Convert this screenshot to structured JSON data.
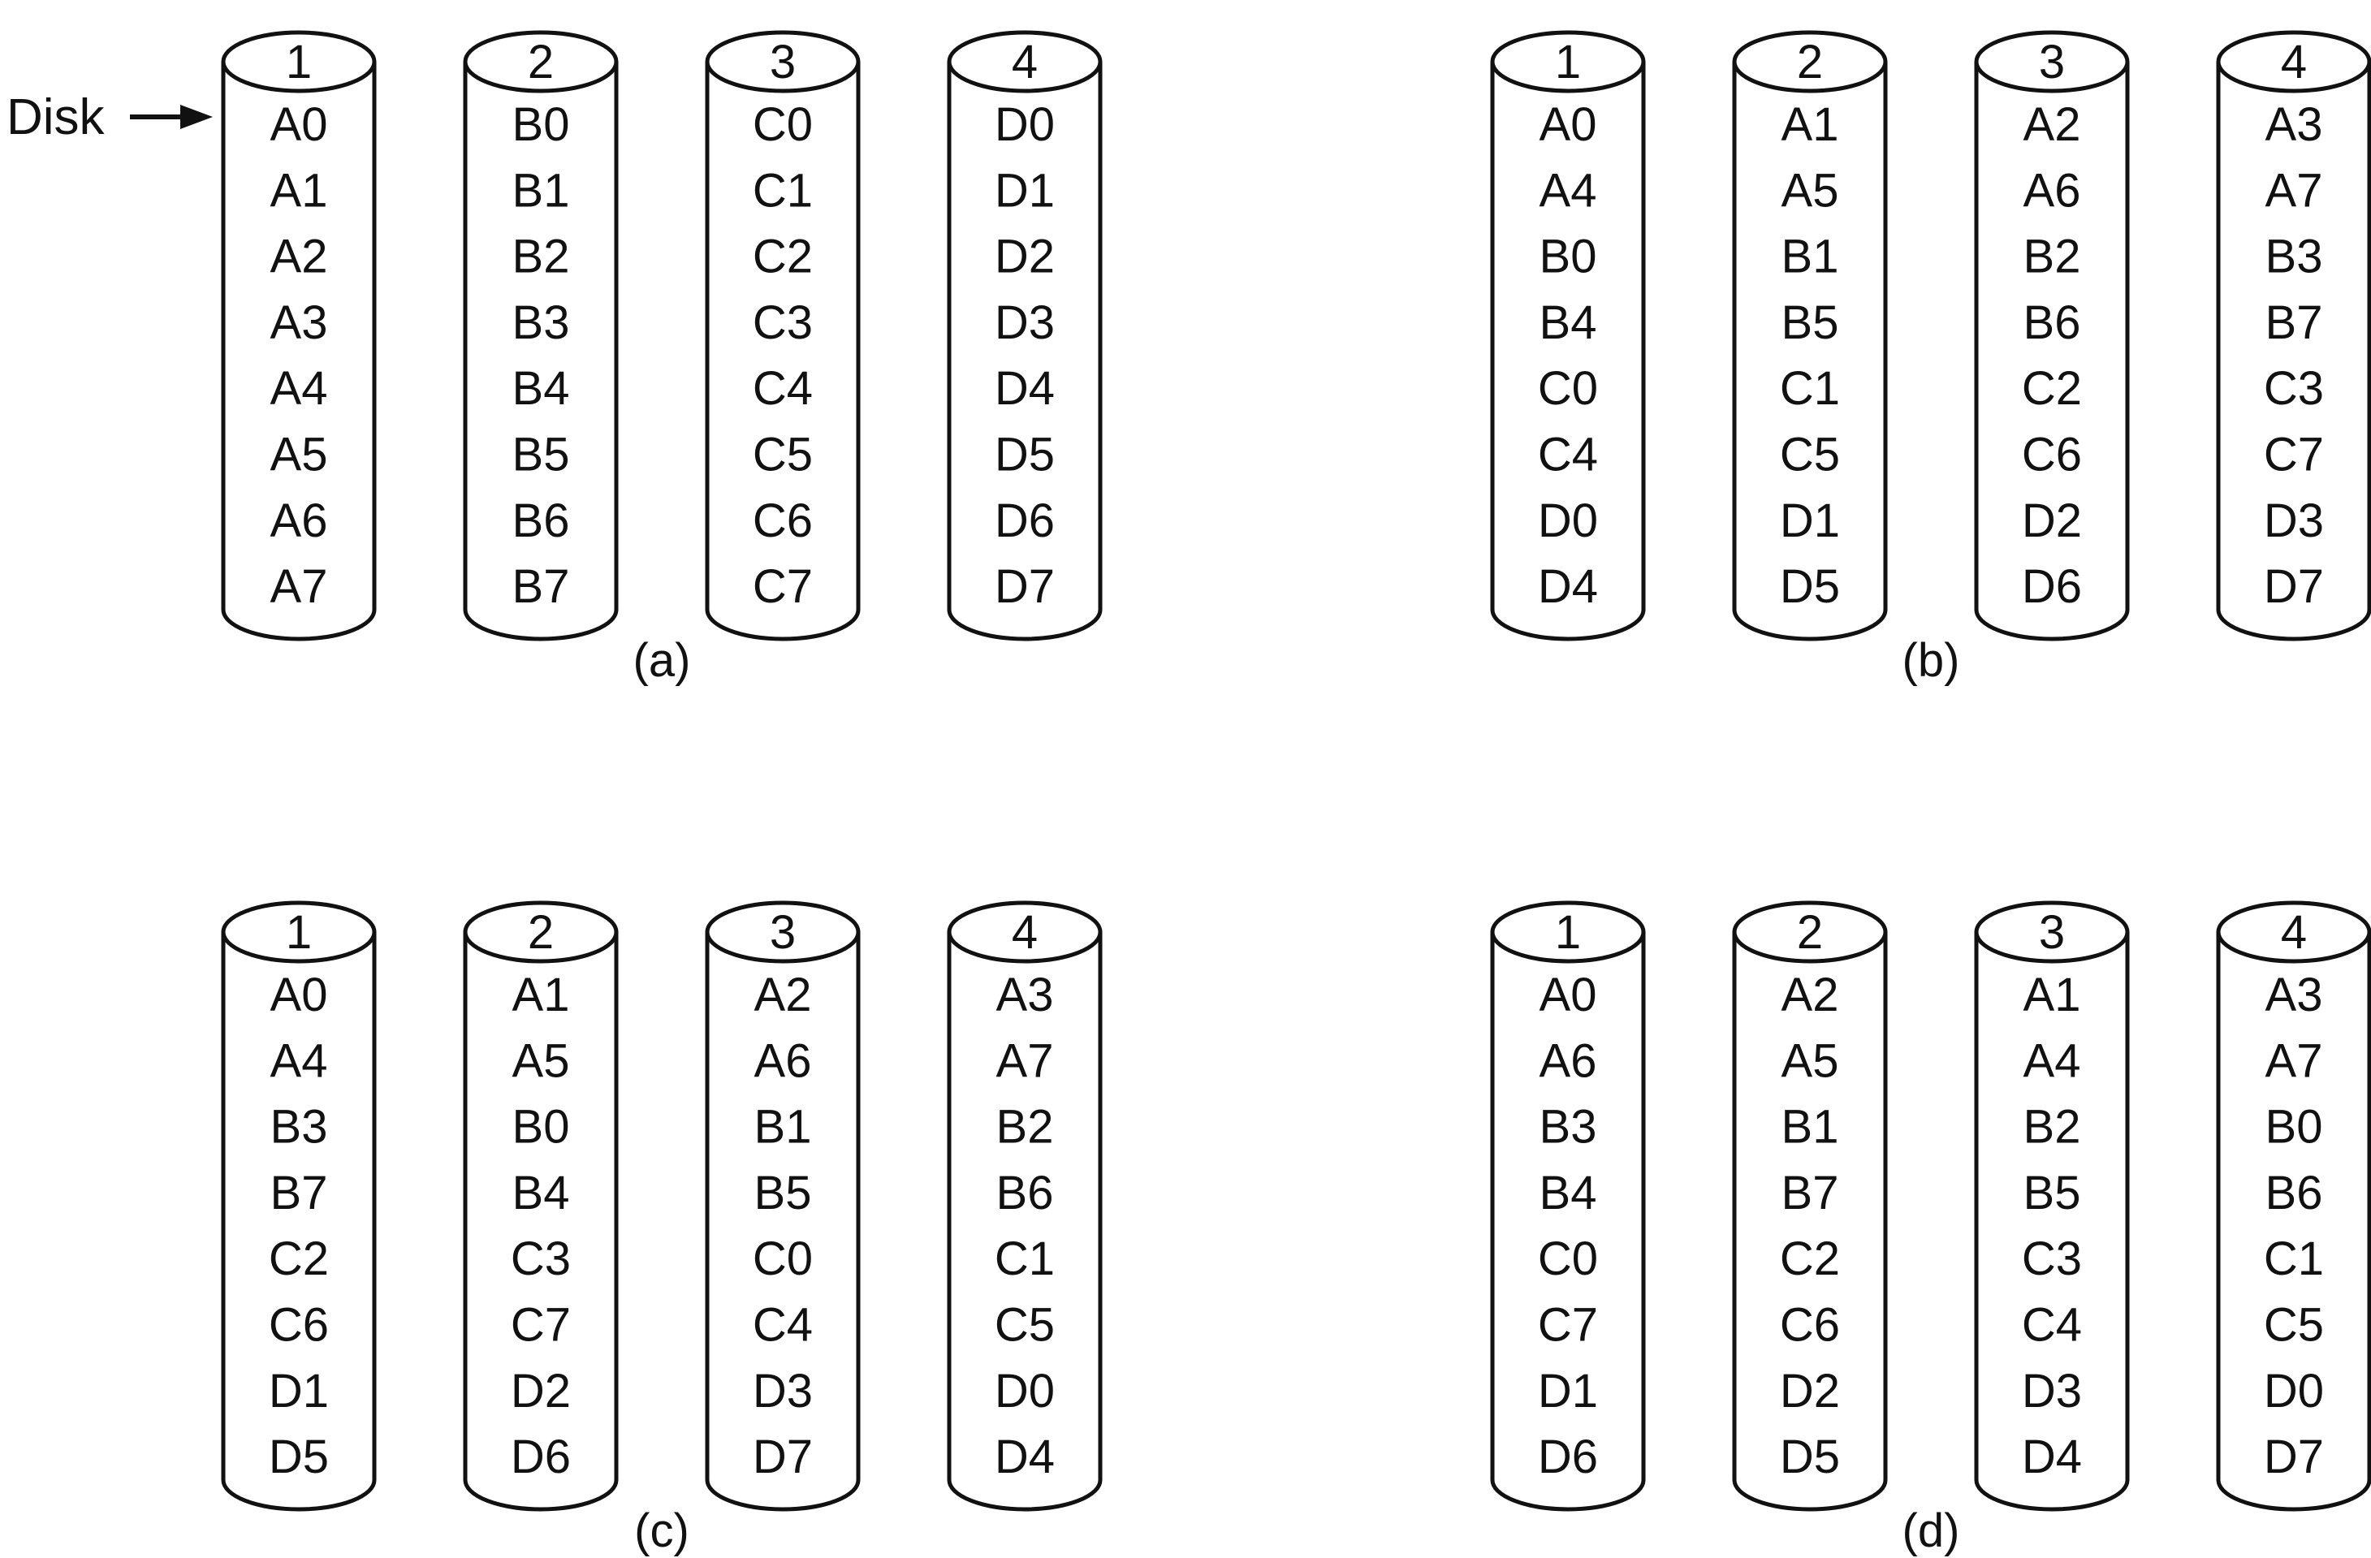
{
  "disk_label": "Disk",
  "panels": [
    {
      "caption": "(a)",
      "disks": [
        {
          "number": "1",
          "blocks": [
            "A0",
            "A1",
            "A2",
            "A3",
            "A4",
            "A5",
            "A6",
            "A7"
          ]
        },
        {
          "number": "2",
          "blocks": [
            "B0",
            "B1",
            "B2",
            "B3",
            "B4",
            "B5",
            "B6",
            "B7"
          ]
        },
        {
          "number": "3",
          "blocks": [
            "C0",
            "C1",
            "C2",
            "C3",
            "C4",
            "C5",
            "C6",
            "C7"
          ]
        },
        {
          "number": "4",
          "blocks": [
            "D0",
            "D1",
            "D2",
            "D3",
            "D4",
            "D5",
            "D6",
            "D7"
          ]
        }
      ]
    },
    {
      "caption": "(b)",
      "disks": [
        {
          "number": "1",
          "blocks": [
            "A0",
            "A4",
            "B0",
            "B4",
            "C0",
            "C4",
            "D0",
            "D4"
          ]
        },
        {
          "number": "2",
          "blocks": [
            "A1",
            "A5",
            "B1",
            "B5",
            "C1",
            "C5",
            "D1",
            "D5"
          ]
        },
        {
          "number": "3",
          "blocks": [
            "A2",
            "A6",
            "B2",
            "B6",
            "C2",
            "C6",
            "D2",
            "D6"
          ]
        },
        {
          "number": "4",
          "blocks": [
            "A3",
            "A7",
            "B3",
            "B7",
            "C3",
            "C7",
            "D3",
            "D7"
          ]
        }
      ]
    },
    {
      "caption": "(c)",
      "disks": [
        {
          "number": "1",
          "blocks": [
            "A0",
            "A4",
            "B3",
            "B7",
            "C2",
            "C6",
            "D1",
            "D5"
          ]
        },
        {
          "number": "2",
          "blocks": [
            "A1",
            "A5",
            "B0",
            "B4",
            "C3",
            "C7",
            "D2",
            "D6"
          ]
        },
        {
          "number": "3",
          "blocks": [
            "A2",
            "A6",
            "B1",
            "B5",
            "C0",
            "C4",
            "D3",
            "D7"
          ]
        },
        {
          "number": "4",
          "blocks": [
            "A3",
            "A7",
            "B2",
            "B6",
            "C1",
            "C5",
            "D0",
            "D4"
          ]
        }
      ]
    },
    {
      "caption": "(d)",
      "disks": [
        {
          "number": "1",
          "blocks": [
            "A0",
            "A6",
            "B3",
            "B4",
            "C0",
            "C7",
            "D1",
            "D6"
          ]
        },
        {
          "number": "2",
          "blocks": [
            "A2",
            "A5",
            "B1",
            "B7",
            "C2",
            "C6",
            "D2",
            "D5"
          ]
        },
        {
          "number": "3",
          "blocks": [
            "A1",
            "A4",
            "B2",
            "B5",
            "C3",
            "C4",
            "D3",
            "D4"
          ]
        },
        {
          "number": "4",
          "blocks": [
            "A3",
            "A7",
            "B0",
            "B6",
            "C1",
            "C5",
            "D0",
            "D7"
          ]
        }
      ]
    }
  ]
}
